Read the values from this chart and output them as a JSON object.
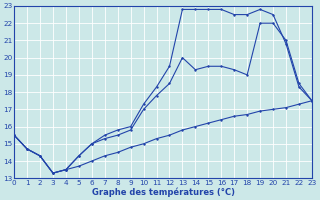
{
  "title": "Graphe des températures (°C)",
  "bg_color": "#cce8e8",
  "grid_color": "#ffffff",
  "line_color": "#2244aa",
  "xmin": 0,
  "xmax": 23,
  "ymin": 13,
  "ymax": 23,
  "series1_x": [
    0,
    1,
    2,
    3,
    4,
    5,
    6,
    7,
    8,
    9,
    10,
    11,
    12,
    13,
    14,
    15,
    16,
    17,
    18,
    19,
    20,
    21,
    22,
    23
  ],
  "series1_y": [
    15.5,
    14.7,
    14.3,
    13.3,
    13.5,
    13.7,
    14.0,
    14.3,
    14.5,
    14.8,
    15.0,
    15.3,
    15.5,
    15.8,
    16.0,
    16.2,
    16.4,
    16.6,
    16.7,
    16.9,
    17.0,
    17.1,
    17.3,
    17.5
  ],
  "series2_x": [
    0,
    1,
    2,
    3,
    4,
    5,
    6,
    7,
    8,
    9,
    10,
    11,
    12,
    13,
    14,
    15,
    16,
    17,
    18,
    19,
    20,
    21,
    22,
    23
  ],
  "series2_y": [
    15.5,
    14.7,
    14.3,
    13.3,
    13.5,
    14.3,
    15.0,
    15.3,
    15.5,
    15.8,
    17.0,
    17.8,
    18.5,
    20.0,
    19.3,
    19.5,
    19.5,
    19.3,
    19.0,
    22.0,
    22.0,
    21.0,
    18.5,
    17.5
  ],
  "series3_x": [
    0,
    1,
    2,
    3,
    4,
    5,
    6,
    7,
    8,
    9,
    10,
    11,
    12,
    13,
    14,
    15,
    16,
    17,
    18,
    19,
    20,
    21,
    22,
    23
  ],
  "series3_y": [
    15.5,
    14.7,
    14.3,
    13.3,
    13.5,
    14.3,
    15.0,
    15.5,
    15.8,
    16.0,
    17.3,
    18.3,
    19.5,
    22.8,
    22.8,
    22.8,
    22.8,
    22.5,
    22.5,
    22.8,
    22.5,
    20.8,
    18.3,
    17.5
  ],
  "xlabel_fontsize": 6.0,
  "tick_fontsize": 5.2
}
